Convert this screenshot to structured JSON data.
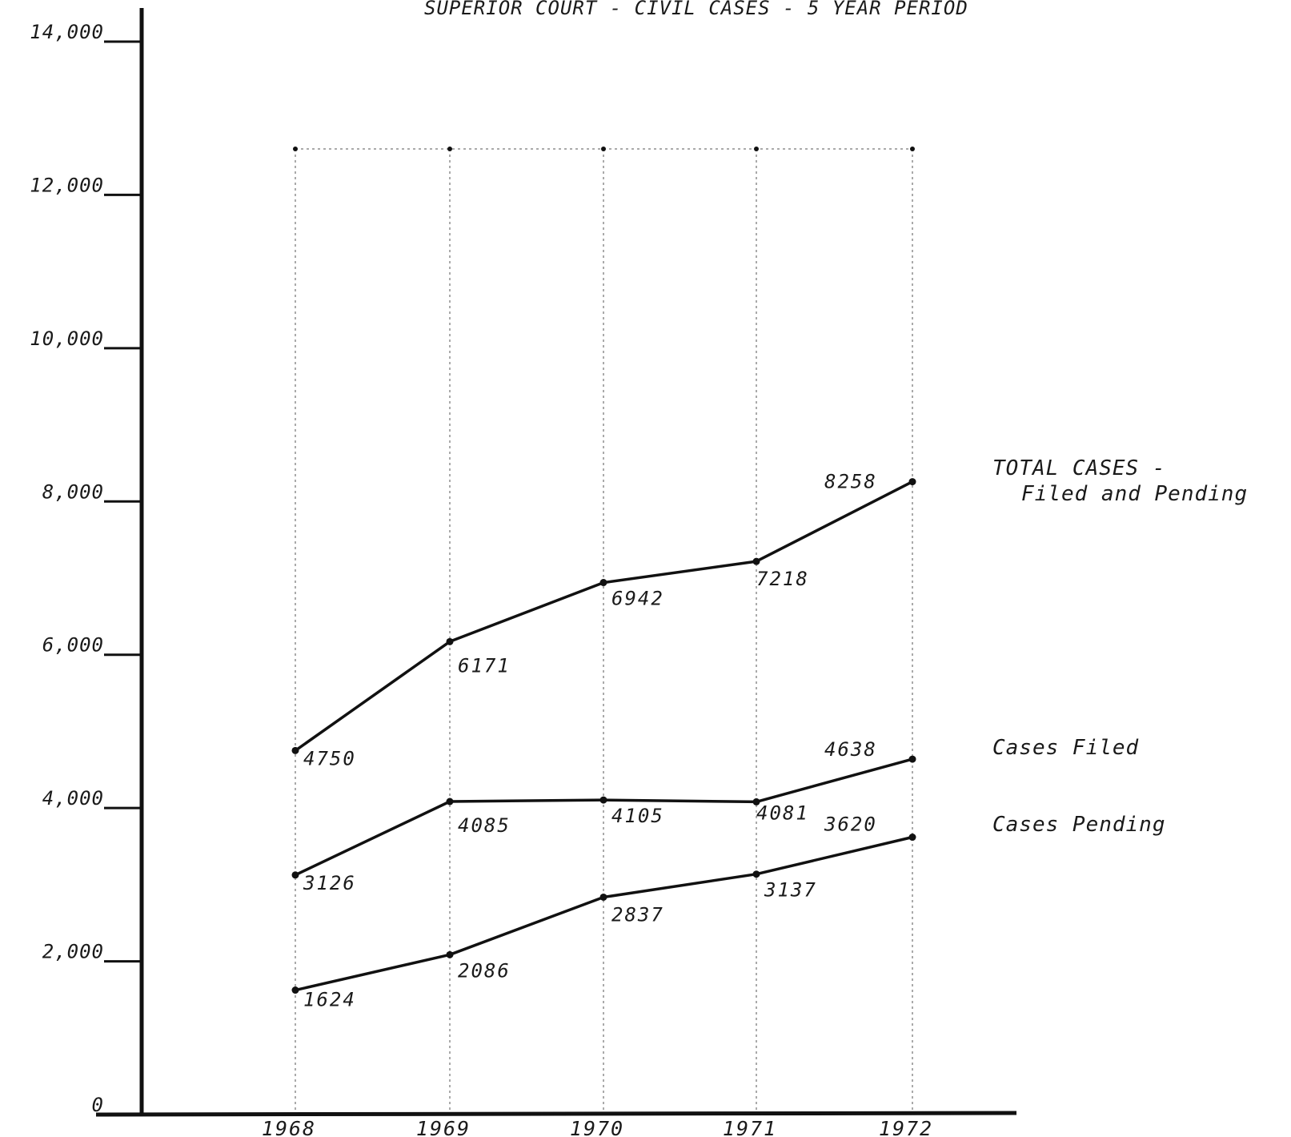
{
  "chart_data": {
    "type": "line",
    "title": "SUPERIOR COURT - CIVIL CASES - 5 YEAR PERIOD",
    "xlabel": "",
    "ylabel": "",
    "x": [
      "1968",
      "1969",
      "1970",
      "1971",
      "1972"
    ],
    "ylim": [
      0,
      14000
    ],
    "yticks": [
      {
        "value": 0,
        "label": "0"
      },
      {
        "value": 2000,
        "label": "2,000"
      },
      {
        "value": 4000,
        "label": "4,000"
      },
      {
        "value": 6000,
        "label": "6,000"
      },
      {
        "value": 8000,
        "label": "8,000"
      },
      {
        "value": 10000,
        "label": "10,000"
      },
      {
        "value": 12000,
        "label": "12,000"
      },
      {
        "value": 14000,
        "label": "14,000"
      }
    ],
    "grid_top_value": 12600,
    "grid": "vertical dashed lines at each year",
    "legend": "right, labels beside series ends",
    "series": [
      {
        "id": "total",
        "name": "TOTAL CASES -",
        "name_line2": "Filed and Pending",
        "values": [
          4750,
          6171,
          6942,
          7218,
          8258
        ],
        "labels": [
          "4750",
          "6171",
          "6942",
          "7218",
          "8258"
        ]
      },
      {
        "id": "filed",
        "name": "Cases Filed",
        "name_line2": "",
        "values": [
          3126,
          4085,
          4105,
          4081,
          4638
        ],
        "labels": [
          "3126",
          "4085",
          "4105",
          "4081",
          "4638"
        ]
      },
      {
        "id": "pending",
        "name": "Cases Pending",
        "name_line2": "",
        "values": [
          1624,
          2086,
          2837,
          3137,
          3620
        ],
        "labels": [
          "1624",
          "2086",
          "2837",
          "3137",
          "3620"
        ]
      }
    ]
  }
}
